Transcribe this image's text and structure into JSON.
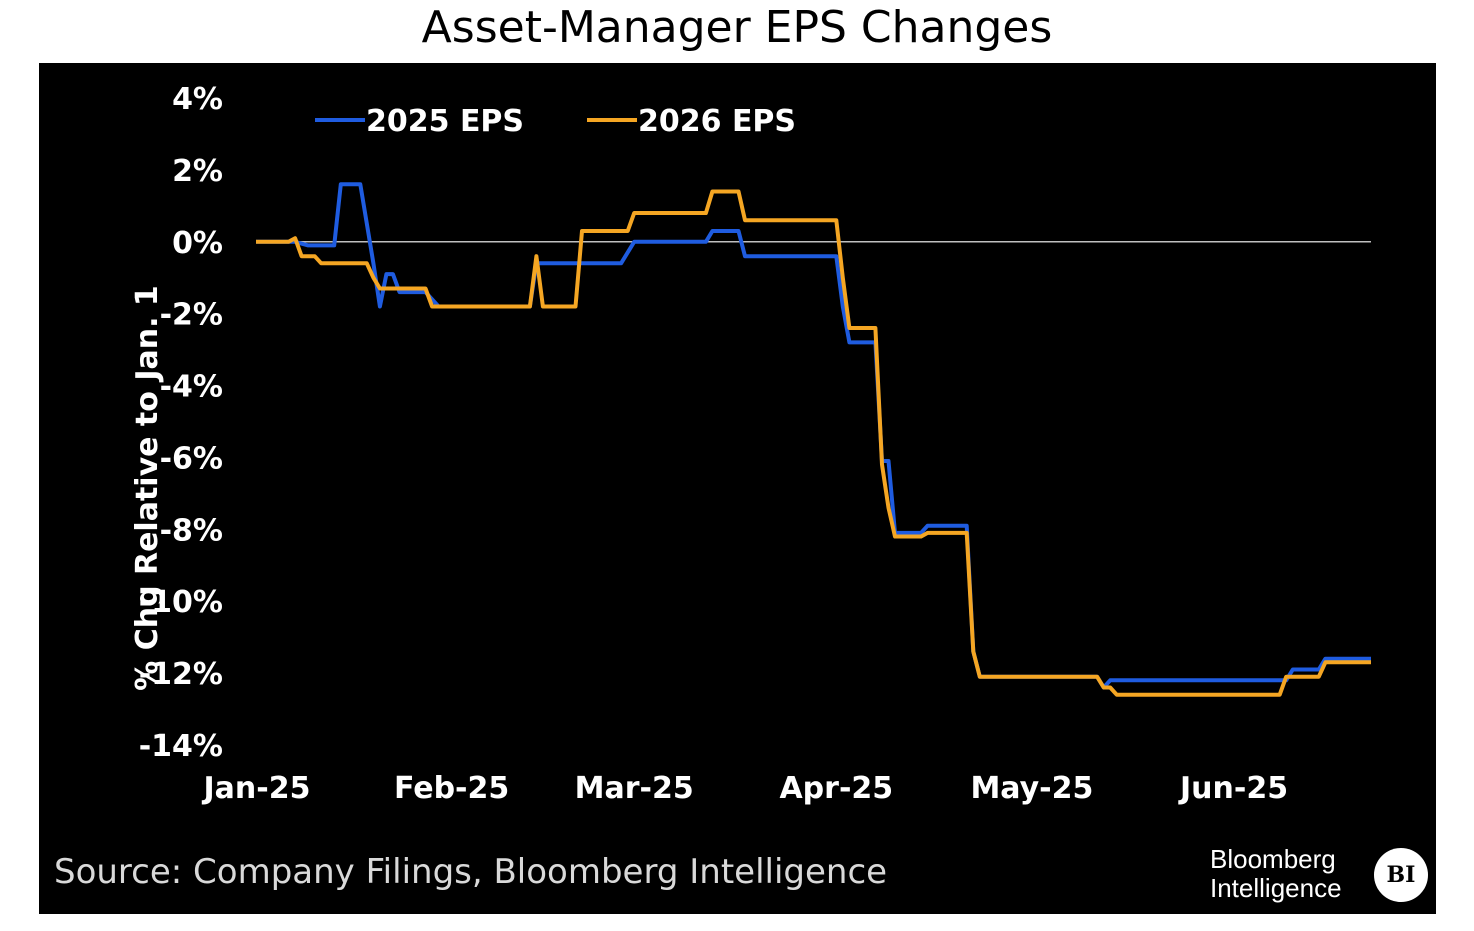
{
  "chart_data": {
    "type": "line",
    "title": "Asset-Manager EPS Changes",
    "ylabel": "% Chg Relative to Jan. 1",
    "xlabel": "",
    "ylim": [
      -14,
      4
    ],
    "y_ticks": [
      "4%",
      "2%",
      "0%",
      "-2%",
      "-4%",
      "-6%",
      "-8%",
      "-10%",
      "-12%",
      "-14%"
    ],
    "x_ticks": [
      "Jan-25",
      "Feb-25",
      "Mar-25",
      "Apr-25",
      "May-25",
      "Jun-25"
    ],
    "reference_line": 0,
    "legend_position": "top-left",
    "grid": false,
    "series": [
      {
        "name": "2025 EPS",
        "color": "#1f5ce0",
        "points": [
          [
            "2025-01-02",
            0
          ],
          [
            "2025-01-08",
            0
          ],
          [
            "2025-01-10",
            -0.1
          ],
          [
            "2025-01-14",
            -0.1
          ],
          [
            "2025-01-15",
            1.6
          ],
          [
            "2025-01-18",
            1.6
          ],
          [
            "2025-01-20",
            -0.6
          ],
          [
            "2025-01-21",
            -1.8
          ],
          [
            "2025-01-22",
            -0.9
          ],
          [
            "2025-01-23",
            -0.9
          ],
          [
            "2025-01-24",
            -1.4
          ],
          [
            "2025-01-27",
            -1.4
          ],
          [
            "2025-01-28",
            -1.4
          ],
          [
            "2025-01-30",
            -1.8
          ],
          [
            "2025-02-13",
            -1.8
          ],
          [
            "2025-02-14",
            -0.6
          ],
          [
            "2025-02-27",
            -0.6
          ],
          [
            "2025-03-01",
            0
          ],
          [
            "2025-03-12",
            0
          ],
          [
            "2025-03-13",
            0.3
          ],
          [
            "2025-03-17",
            0.3
          ],
          [
            "2025-03-18",
            -0.4
          ],
          [
            "2025-04-01",
            -0.4
          ],
          [
            "2025-04-02",
            -1.8
          ],
          [
            "2025-04-03",
            -2.8
          ],
          [
            "2025-04-07",
            -2.8
          ],
          [
            "2025-04-08",
            -6.1
          ],
          [
            "2025-04-09",
            -6.1
          ],
          [
            "2025-04-10",
            -8.1
          ],
          [
            "2025-04-14",
            -8.1
          ],
          [
            "2025-04-15",
            -7.9
          ],
          [
            "2025-04-21",
            -7.9
          ],
          [
            "2025-04-22",
            -11.4
          ],
          [
            "2025-04-23",
            -12.1
          ],
          [
            "2025-05-11",
            -12.1
          ],
          [
            "2025-05-12",
            -12.4
          ],
          [
            "2025-05-13",
            -12.2
          ],
          [
            "2025-06-09",
            -12.2
          ],
          [
            "2025-06-10",
            -11.9
          ],
          [
            "2025-06-14",
            -11.9
          ],
          [
            "2025-06-15",
            -11.6
          ],
          [
            "2025-06-22",
            -11.6
          ]
        ]
      },
      {
        "name": "2026 EPS",
        "color": "#f5a623",
        "points": [
          [
            "2025-01-02",
            0
          ],
          [
            "2025-01-07",
            0
          ],
          [
            "2025-01-08",
            0.1
          ],
          [
            "2025-01-09",
            -0.4
          ],
          [
            "2025-01-11",
            -0.4
          ],
          [
            "2025-01-12",
            -0.6
          ],
          [
            "2025-01-16",
            -0.6
          ],
          [
            "2025-01-19",
            -0.6
          ],
          [
            "2025-01-20",
            -1.0
          ],
          [
            "2025-01-21",
            -1.3
          ],
          [
            "2025-01-28",
            -1.3
          ],
          [
            "2025-01-29",
            -1.8
          ],
          [
            "2025-02-13",
            -1.8
          ],
          [
            "2025-02-14",
            -0.4
          ],
          [
            "2025-02-15",
            -1.8
          ],
          [
            "2025-02-20",
            -1.8
          ],
          [
            "2025-02-21",
            0.3
          ],
          [
            "2025-02-28",
            0.3
          ],
          [
            "2025-03-01",
            0.8
          ],
          [
            "2025-03-12",
            0.8
          ],
          [
            "2025-03-13",
            1.4
          ],
          [
            "2025-03-17",
            1.4
          ],
          [
            "2025-03-18",
            0.6
          ],
          [
            "2025-04-01",
            0.6
          ],
          [
            "2025-04-02",
            -1.0
          ],
          [
            "2025-04-03",
            -2.4
          ],
          [
            "2025-04-07",
            -2.4
          ],
          [
            "2025-04-08",
            -6.2
          ],
          [
            "2025-04-09",
            -7.4
          ],
          [
            "2025-04-10",
            -8.2
          ],
          [
            "2025-04-14",
            -8.2
          ],
          [
            "2025-04-15",
            -8.1
          ],
          [
            "2025-04-21",
            -8.1
          ],
          [
            "2025-04-22",
            -11.4
          ],
          [
            "2025-04-23",
            -12.1
          ],
          [
            "2025-05-11",
            -12.1
          ],
          [
            "2025-05-12",
            -12.4
          ],
          [
            "2025-05-13",
            -12.4
          ],
          [
            "2025-05-14",
            -12.6
          ],
          [
            "2025-06-08",
            -12.6
          ],
          [
            "2025-06-09",
            -12.1
          ],
          [
            "2025-06-14",
            -12.1
          ],
          [
            "2025-06-15",
            -11.7
          ],
          [
            "2025-06-22",
            -11.7
          ]
        ]
      }
    ],
    "source": "Source: Company Filings, Bloomberg Intelligence",
    "branding": [
      "Bloomberg",
      "Intelligence",
      "BI"
    ]
  }
}
